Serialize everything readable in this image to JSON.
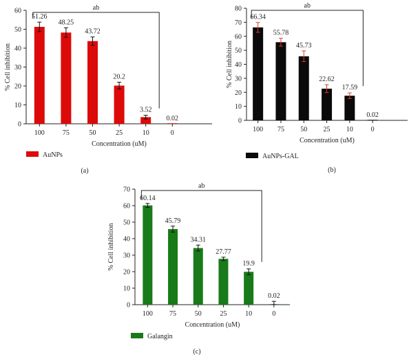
{
  "chart_data": [
    {
      "type": "bar",
      "panel_label": "(a)",
      "categories": [
        "100",
        "75",
        "50",
        "25",
        "10",
        "0"
      ],
      "series": [
        {
          "name": "AuNPs",
          "color": "#dd0a0a",
          "values": [
            51.26,
            48.25,
            43.72,
            20.2,
            3.52,
            0.02
          ],
          "errors": [
            2.5,
            2.5,
            2.2,
            1.8,
            1.0,
            0.0
          ],
          "error_color": "#111111"
        }
      ],
      "data_labels": [
        "51.26",
        "48.25",
        "43.72",
        "20.2",
        "3.52",
        "0.02"
      ],
      "xlabel": "Concentration (uM)",
      "ylabel": "% Cell inhibition",
      "ylim": [
        0,
        60
      ],
      "yticks": [
        0,
        10,
        20,
        30,
        40,
        50,
        60
      ],
      "annotation": "ab",
      "legend": "bottom-left"
    },
    {
      "type": "bar",
      "panel_label": "(b)",
      "categories": [
        "100",
        "75",
        "50",
        "25",
        "10",
        "0"
      ],
      "series": [
        {
          "name": "AuNPs-GAL",
          "color": "#0a0a0a",
          "values": [
            66.34,
            55.78,
            45.73,
            22.62,
            17.59,
            0.02
          ],
          "errors": [
            3.5,
            2.8,
            3.8,
            2.8,
            2.0,
            0.0
          ],
          "error_color": "#e03a2a"
        }
      ],
      "data_labels": [
        "66.34",
        "55.78",
        "45.73",
        "22.62",
        "17.59",
        "0.02"
      ],
      "xlabel": "Concentration (uM)",
      "ylabel": "% Cell inhibition",
      "ylim": [
        0,
        80
      ],
      "yticks": [
        0,
        10,
        20,
        30,
        40,
        50,
        60,
        70,
        80
      ],
      "annotation": "ab",
      "legend": "bottom-left"
    },
    {
      "type": "bar",
      "panel_label": "(c)",
      "categories": [
        "100",
        "75",
        "50",
        "25",
        "10",
        "0"
      ],
      "series": [
        {
          "name": "Galangin",
          "color": "#197a19",
          "values": [
            60.14,
            45.79,
            34.31,
            27.77,
            19.9,
            0.02
          ],
          "errors": [
            1.2,
            1.8,
            1.8,
            1.0,
            1.8,
            2.0
          ],
          "error_color": "#111111"
        }
      ],
      "data_labels": [
        "60.14",
        "45.79",
        "34.31",
        "27.77",
        "19.9",
        "0.02"
      ],
      "xlabel": "Concentration (uM)",
      "ylabel": "% Cell inhibition",
      "ylim": [
        0,
        70
      ],
      "yticks": [
        0,
        10,
        20,
        30,
        40,
        50,
        60,
        70
      ],
      "annotation": "ab",
      "legend": "bottom-left"
    }
  ]
}
